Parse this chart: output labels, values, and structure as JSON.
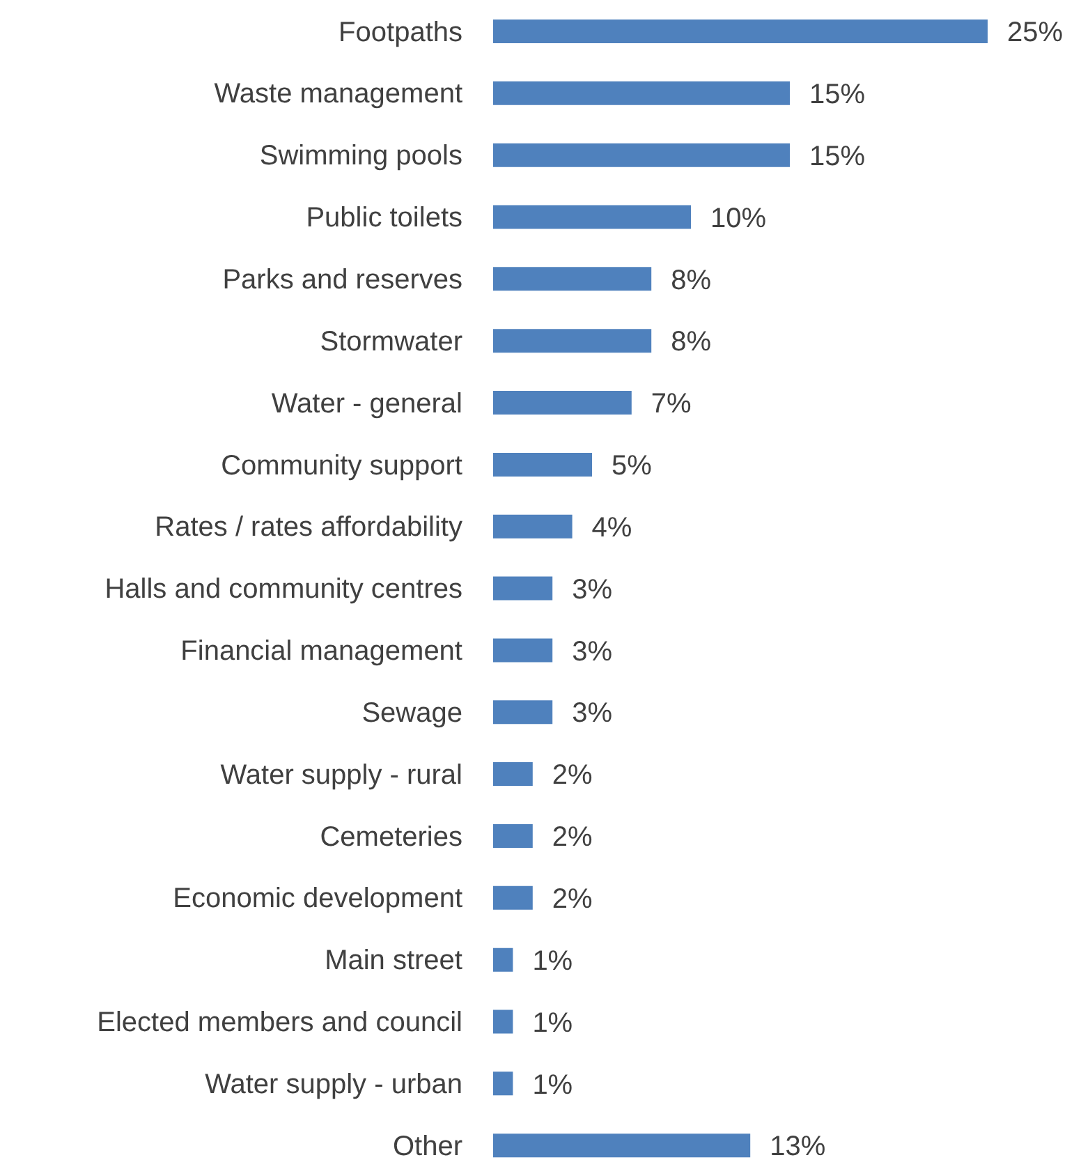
{
  "chart_data": {
    "type": "bar",
    "orientation": "horizontal",
    "categories": [
      "Footpaths",
      "Waste management",
      "Swimming pools",
      "Public toilets",
      "Parks and reserves",
      "Stormwater",
      "Water - general",
      "Community support",
      "Rates / rates affordability",
      "Halls and community centres",
      "Financial management",
      "Sewage",
      "Water supply - rural",
      "Cemeteries",
      "Economic development",
      "Main street",
      "Elected members and council",
      "Water supply - urban",
      "Other"
    ],
    "values": [
      25,
      15,
      15,
      10,
      8,
      8,
      7,
      5,
      4,
      3,
      3,
      3,
      2,
      2,
      2,
      1,
      1,
      1,
      13
    ],
    "value_labels": [
      "25%",
      "15%",
      "15%",
      "10%",
      "8%",
      "8%",
      "7%",
      "5%",
      "4%",
      "3%",
      "3%",
      "3%",
      "2%",
      "2%",
      "2%",
      "1%",
      "1%",
      "1%",
      "13%"
    ],
    "color": "#4f81bd"
  }
}
